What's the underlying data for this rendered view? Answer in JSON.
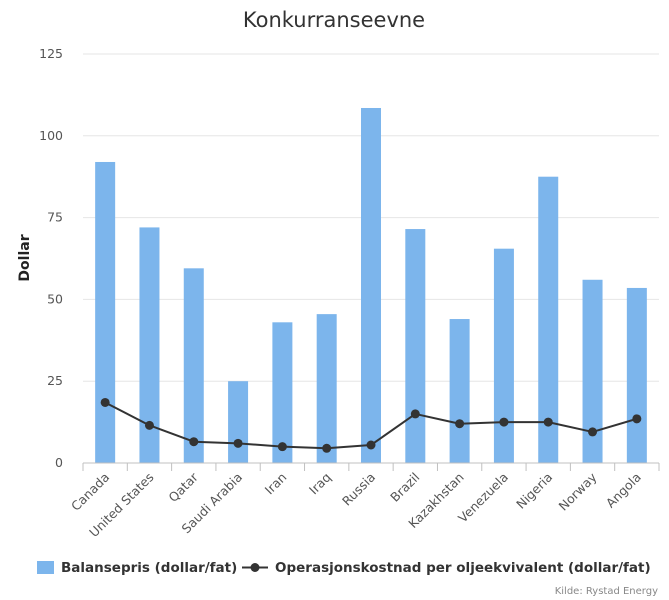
{
  "chart_data": {
    "type": "bar",
    "title": "Konkurranseevne",
    "ylabel": "Dollar",
    "xlabel": "",
    "ylim": [
      0,
      125
    ],
    "yticks": [
      0,
      25,
      50,
      75,
      100,
      125
    ],
    "grid": true,
    "legend_position": "bottom-left",
    "categories": [
      "Canada",
      "United States",
      "Qatar",
      "Saudi Arabia",
      "Iran",
      "Iraq",
      "Russia",
      "Brazil",
      "Kazakhstan",
      "Venezuela",
      "Nigeria",
      "Norway",
      "Angola"
    ],
    "series": [
      {
        "name": "Balansepris (dollar/fat)",
        "type": "bar",
        "color": "#7cb5ec",
        "values": [
          92,
          72,
          59.5,
          25,
          43,
          45.5,
          108.5,
          71.5,
          44,
          65.5,
          87.5,
          56,
          53.5
        ]
      },
      {
        "name": "Operasjonskostnad per oljeekvivalent (dollar/fat)",
        "type": "line",
        "color": "#333333",
        "values": [
          18.5,
          11.5,
          6.5,
          6,
          5,
          4.5,
          5.5,
          15,
          12,
          12.5,
          12.5,
          9.5,
          13.5
        ]
      }
    ],
    "credit": "Kilde: Rystad Energy"
  }
}
